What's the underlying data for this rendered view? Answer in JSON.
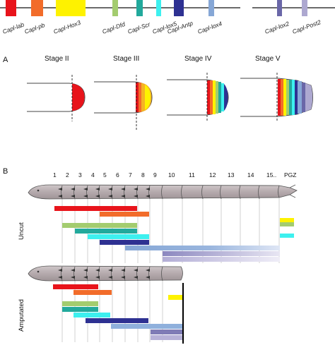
{
  "panel_a_label": "A",
  "panel_b_label": "B",
  "genes": [
    {
      "name": "Capl-lab",
      "color": "#e8141b"
    },
    {
      "name": "Capl-pb",
      "color": "#f26c2a"
    },
    {
      "name": "Capl-Hox3",
      "color": "#fef200"
    },
    {
      "name": "Capl-Dfd",
      "color": "#a3cc6f"
    },
    {
      "name": "Capl-Scr",
      "color": "#22a99c"
    },
    {
      "name": "Capl-lox5",
      "color": "#3df0ef"
    },
    {
      "name": "Capl-Antp",
      "color": "#2e3192"
    },
    {
      "name": "Capl-lox4",
      "color": "#86a7d6"
    },
    {
      "name": "Capl-lox2",
      "color": "#6a67a8"
    },
    {
      "name": "Capl-Post2",
      "color": "#ada8d0"
    }
  ],
  "stages": [
    "Stage II",
    "Stage III",
    "Stage IV",
    "Stage V"
  ],
  "segments": [
    "1",
    "2",
    "3",
    "4",
    "5",
    "6",
    "7",
    "8",
    "9",
    "10",
    "11",
    "12",
    "13",
    "14",
    "15..",
    "PGZ"
  ],
  "uncut_label": "Uncut",
  "amputated_label": "Amputated"
}
